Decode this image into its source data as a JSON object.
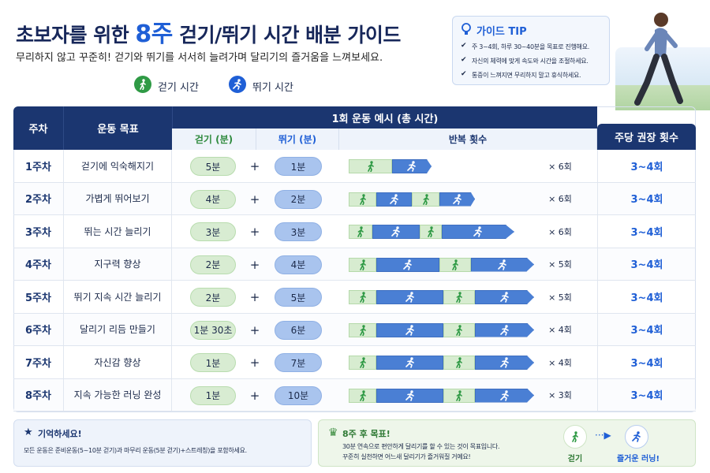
{
  "header": {
    "title_pre": "초보자를 위한 ",
    "title_highlight": "8주",
    "title_post": " 걷기/뛰기 시간 배분 가이드",
    "subtitle": "무리하지 않고 꾸준히! 걷기와 뛰기를 서서히 늘려가며 달리기의 즐거움을 느껴보세요.",
    "legend_walk": "걷기 시간",
    "legend_run": "뛰기 시간"
  },
  "tip": {
    "title": "가이드 TIP",
    "items": [
      "주 3~4회, 하루 30~40분을 목표로 진행해요.",
      "자신의 체력에 맞게 속도와 시간을 조절하세요.",
      "통증이 느껴지면 무리하지 말고 휴식하세요."
    ]
  },
  "table": {
    "headers": {
      "week": "주차",
      "goal": "운동 목표",
      "example": "1회 운동 예시 (총 시간)",
      "walk": "걷기 (분)",
      "run": "뛰기 (분)",
      "reps": "반복 횟수",
      "freq": "주당 권장 횟수"
    },
    "plus": "+",
    "rows": [
      [
        "1주차",
        "걷기에 익숙해지기",
        "5분",
        "1분",
        "× 6회",
        "3~4회"
      ],
      [
        "2주차",
        "가볍게 뛰어보기",
        "4분",
        "2분",
        "× 6회",
        "3~4회"
      ],
      [
        "3주차",
        "뛰는 시간 늘리기",
        "3분",
        "3분",
        "× 6회",
        "3~4회"
      ],
      [
        "4주차",
        "지구력 향상",
        "2분",
        "4분",
        "× 5회",
        "3~4회"
      ],
      [
        "5주차",
        "뛰기 지속 시간 늘리기",
        "2분",
        "5분",
        "× 5회",
        "3~4회"
      ],
      [
        "6주차",
        "달리기 리듬 만들기",
        "1분 30초",
        "6분",
        "× 4회",
        "3~4회"
      ],
      [
        "7주차",
        "자신감 향상",
        "1분",
        "7분",
        "× 4회",
        "3~4회"
      ],
      [
        "8주차",
        "지속 가능한 러닝 완성",
        "1분",
        "10분",
        "× 3회",
        "3~4회"
      ]
    ]
  },
  "footer": {
    "remember_title": "기억하세요!",
    "remember_text": "모든 운동은 준비운동(5~10분 걷기)과 마무리 운동(5분 걷기)+스트레칭)을 포함하세요.",
    "goal_title": "8주 후 목표!",
    "goal_lines": [
      "30분 연속으로 편안하게 달리기를 할 수 있는 것이 목표입니다.",
      "꾸준히 실천하면 어느새 달리기가 즐거워질 거예요!"
    ],
    "goal_from": "걷기",
    "goal_to": "즐거운 러닝!"
  }
}
